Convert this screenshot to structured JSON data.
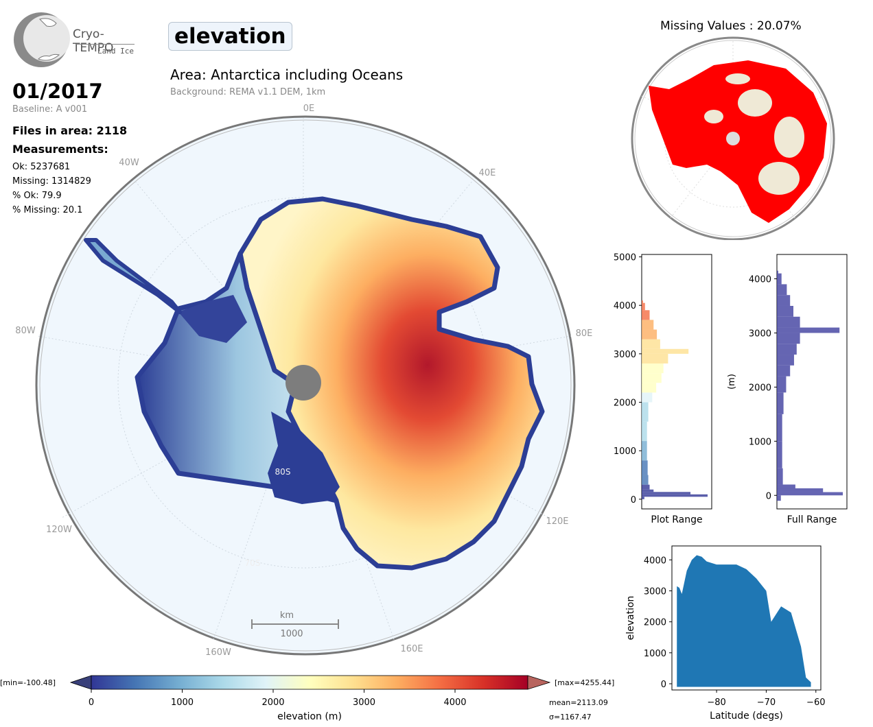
{
  "logo": {
    "name": "Cryo-TEMPO",
    "sub": "Land Ice"
  },
  "variable": "elevation",
  "area_title": "Area: Antarctica including Oceans",
  "background_note": "Background: REMA v1.1 DEM, 1km",
  "date": "01/2017",
  "baseline": "Baseline: A v001",
  "files_in_area": "Files in area: 2118",
  "measurements_label": "Measurements:",
  "stats": [
    "Ok: 5237681",
    "Missing: 1314829",
    "% Ok: 79.9",
    "% Missing: 20.1"
  ],
  "map": {
    "lon_labels": [
      "0E",
      "40E",
      "80E",
      "120E",
      "160E",
      "160W",
      "120W",
      "80W",
      "40W"
    ],
    "lat_labels": [
      "80S",
      "70S"
    ],
    "scalebar": {
      "unit": "km",
      "value": "1000"
    }
  },
  "colorbar": {
    "min_label": "[min=-100.48]",
    "max_label": "[max=4255.44]",
    "ticks": [
      "0",
      "1000",
      "2000",
      "3000",
      "4000"
    ],
    "label": "elevation (m)",
    "mean": "mean=2113.09",
    "sigma": "σ=1167.47",
    "colors": [
      "#313695",
      "#4575b4",
      "#74add1",
      "#abd9e9",
      "#e0f3f8",
      "#ffffbf",
      "#fee090",
      "#fdae61",
      "#f46d43",
      "#d73027",
      "#a50026"
    ]
  },
  "missing_title": "Missing Values : 20.07%",
  "chart_data": [
    {
      "type": "bar",
      "orientation": "horizontal",
      "xlabel": "Plot Range",
      "ylabel": "",
      "ylim": [
        -200,
        5050
      ],
      "yticks": [
        "0",
        "1000",
        "2000",
        "3000",
        "4000",
        "5000"
      ],
      "bins": [
        {
          "y": 0,
          "w": 0.04
        },
        {
          "y": 50,
          "w": 1.0
        },
        {
          "y": 100,
          "w": 0.74
        },
        {
          "y": 150,
          "w": 0.18
        },
        {
          "y": 200,
          "w": 0.12
        },
        {
          "y": 300,
          "w": 0.1
        },
        {
          "y": 500,
          "w": 0.09
        },
        {
          "y": 800,
          "w": 0.08
        },
        {
          "y": 1200,
          "w": 0.08
        },
        {
          "y": 1600,
          "w": 0.1
        },
        {
          "y": 2000,
          "w": 0.16
        },
        {
          "y": 2200,
          "w": 0.22
        },
        {
          "y": 2400,
          "w": 0.3
        },
        {
          "y": 2600,
          "w": 0.33
        },
        {
          "y": 2800,
          "w": 0.4
        },
        {
          "y": 3000,
          "w": 0.71
        },
        {
          "y": 3100,
          "w": 0.28
        },
        {
          "y": 3300,
          "w": 0.23
        },
        {
          "y": 3500,
          "w": 0.18
        },
        {
          "y": 3700,
          "w": 0.12
        },
        {
          "y": 3900,
          "w": 0.05
        },
        {
          "y": 4050,
          "w": 0.02
        }
      ]
    },
    {
      "type": "bar",
      "orientation": "horizontal",
      "xlabel": "Full Range",
      "ylabel": "(m)",
      "ylim": [
        -250,
        4450
      ],
      "yticks": [
        "0",
        "1000",
        "2000",
        "3000",
        "4000"
      ],
      "bins": [
        {
          "y": -100,
          "w": 0.06
        },
        {
          "y": 0,
          "w": 1.0
        },
        {
          "y": 60,
          "w": 0.7
        },
        {
          "y": 130,
          "w": 0.28
        },
        {
          "y": 200,
          "w": 0.09
        },
        {
          "y": 500,
          "w": 0.08
        },
        {
          "y": 1000,
          "w": 0.08
        },
        {
          "y": 1500,
          "w": 0.1
        },
        {
          "y": 1900,
          "w": 0.14
        },
        {
          "y": 2200,
          "w": 0.2
        },
        {
          "y": 2400,
          "w": 0.26
        },
        {
          "y": 2600,
          "w": 0.3
        },
        {
          "y": 2800,
          "w": 0.35
        },
        {
          "y": 3000,
          "w": 0.95
        },
        {
          "y": 3100,
          "w": 0.35
        },
        {
          "y": 3300,
          "w": 0.25
        },
        {
          "y": 3500,
          "w": 0.2
        },
        {
          "y": 3700,
          "w": 0.15
        },
        {
          "y": 3900,
          "w": 0.07
        },
        {
          "y": 4100,
          "w": 0.02
        }
      ]
    },
    {
      "type": "scatter",
      "xlabel": "Latitude (degs)",
      "ylabel": "elevation",
      "xlim": [
        -89,
        -59
      ],
      "ylim": [
        -200,
        4450
      ],
      "xticks": [
        -80,
        -70,
        -60
      ],
      "yticks": [
        0,
        1000,
        2000,
        3000,
        4000
      ],
      "color": "#1f77b4",
      "envelope": [
        [
          -88,
          3150
        ],
        [
          -87.5,
          3100
        ],
        [
          -87,
          2900
        ],
        [
          -86,
          3650
        ],
        [
          -85,
          4000
        ],
        [
          -84,
          4150
        ],
        [
          -83,
          4100
        ],
        [
          -82,
          3950
        ],
        [
          -80,
          3850
        ],
        [
          -78,
          3850
        ],
        [
          -76,
          3850
        ],
        [
          -74,
          3700
        ],
        [
          -72,
          3400
        ],
        [
          -70,
          3000
        ],
        [
          -69,
          2000
        ],
        [
          -67,
          2500
        ],
        [
          -65,
          2300
        ],
        [
          -63,
          1200
        ],
        [
          -62,
          200
        ],
        [
          -61,
          50
        ]
      ],
      "floor": -100
    }
  ]
}
